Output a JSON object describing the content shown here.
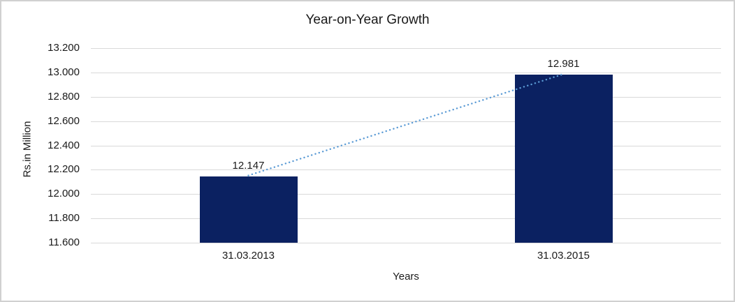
{
  "chart_data": {
    "type": "bar",
    "title": "Year-on-Year Growth",
    "xlabel": "Years",
    "ylabel": "Rs.in Million",
    "categories": [
      "31.03.2013",
      "31.03.2015"
    ],
    "values": [
      12.147,
      12.981
    ],
    "value_labels": [
      "12.147",
      "12.981"
    ],
    "ylim": [
      11.6,
      13.2
    ],
    "ytick_values": [
      11.6,
      11.8,
      12.0,
      12.2,
      12.4,
      12.6,
      12.8,
      13.0,
      13.2
    ],
    "ytick_labels": [
      "11.600",
      "11.800",
      "12.000",
      "12.200",
      "12.400",
      "12.600",
      "12.800",
      "13.000",
      "13.200"
    ],
    "grid": true,
    "legend": "none",
    "bar_color": "#0b2161",
    "gridline_color": "#d9d9d9",
    "trendline": {
      "type": "linear",
      "style": "dotted",
      "color": "#5b9bd5"
    }
  }
}
